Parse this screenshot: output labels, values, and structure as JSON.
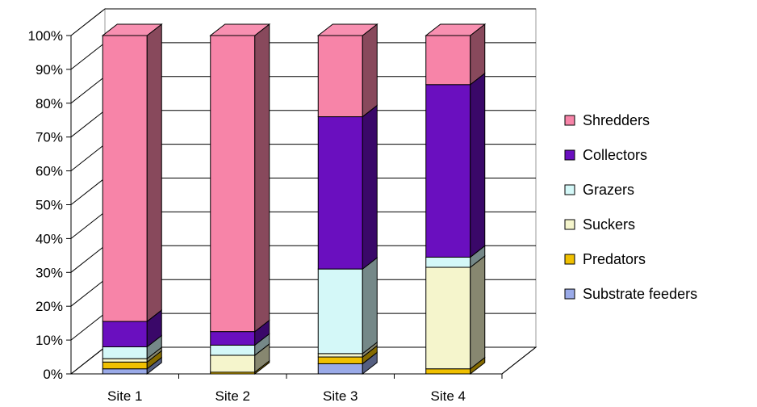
{
  "chart_data": {
    "type": "bar",
    "stacked": true,
    "percent_stacked": true,
    "three_d": true,
    "categories": [
      "Site 1",
      "Site 2",
      "Site 3",
      "Site 4"
    ],
    "ylim": [
      0,
      100
    ],
    "y_ticks": [
      "0%",
      "10%",
      "20%",
      "30%",
      "40%",
      "50%",
      "60%",
      "70%",
      "80%",
      "90%",
      "100%"
    ],
    "grid": true,
    "legend_position": "right",
    "series": [
      {
        "name": "Substrate feeders",
        "color": "#9aaae8",
        "values": [
          1.5,
          0,
          3,
          0
        ]
      },
      {
        "name": "Predators",
        "color": "#f0c000",
        "values": [
          2,
          0.5,
          2,
          1.5
        ]
      },
      {
        "name": "Suckers",
        "color": "#f5f5cc",
        "values": [
          1,
          5,
          1,
          30
        ]
      },
      {
        "name": "Grazers",
        "color": "#d4f8f8",
        "values": [
          3.5,
          3,
          25,
          3
        ]
      },
      {
        "name": "Collectors",
        "color": "#6a0fbf",
        "values": [
          7.5,
          4,
          45,
          51
        ]
      },
      {
        "name": "Shredders",
        "color": "#f784a8",
        "values": [
          84.5,
          87.5,
          24,
          14.5
        ]
      }
    ]
  }
}
